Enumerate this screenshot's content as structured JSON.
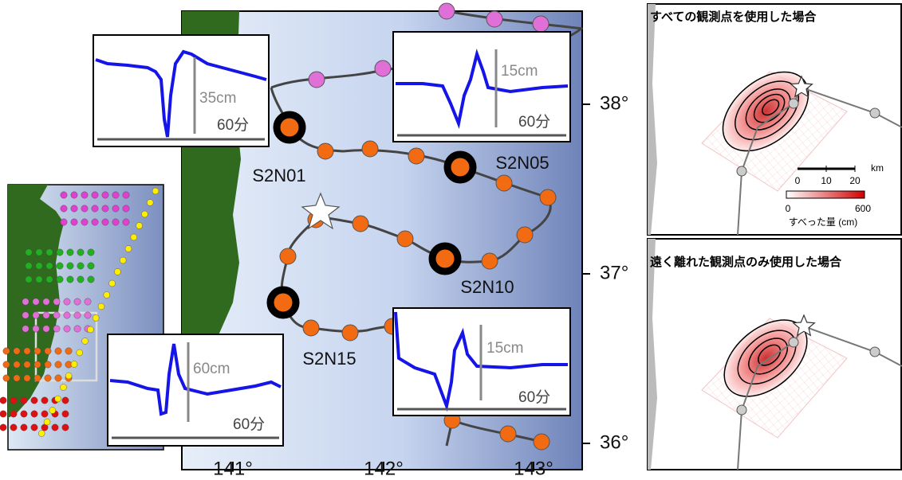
{
  "map": {
    "lon_labels": [
      "141°",
      "142°",
      "143°"
    ],
    "lat_labels": [
      "38°",
      "37°",
      "36°"
    ],
    "stations": [
      "S2N01",
      "S2N05",
      "S2N10",
      "S2N15"
    ]
  },
  "insets": [
    {
      "amplitude": "35cm",
      "duration": "60分"
    },
    {
      "amplitude": "15cm",
      "duration": "60分"
    },
    {
      "amplitude": "60cm",
      "duration": "60分"
    },
    {
      "amplitude": "15cm",
      "duration": "60分"
    }
  ],
  "panels": [
    {
      "title": "すべての観測点を使用した場合"
    },
    {
      "title": "遠く離れた観測点のみ使用した場合"
    }
  ],
  "scale": {
    "unit": "km",
    "ticks": [
      "0",
      "10",
      "20"
    ]
  },
  "colorbar": {
    "ticks": [
      "0",
      "600"
    ],
    "label": "すべった量 (cm)"
  }
}
